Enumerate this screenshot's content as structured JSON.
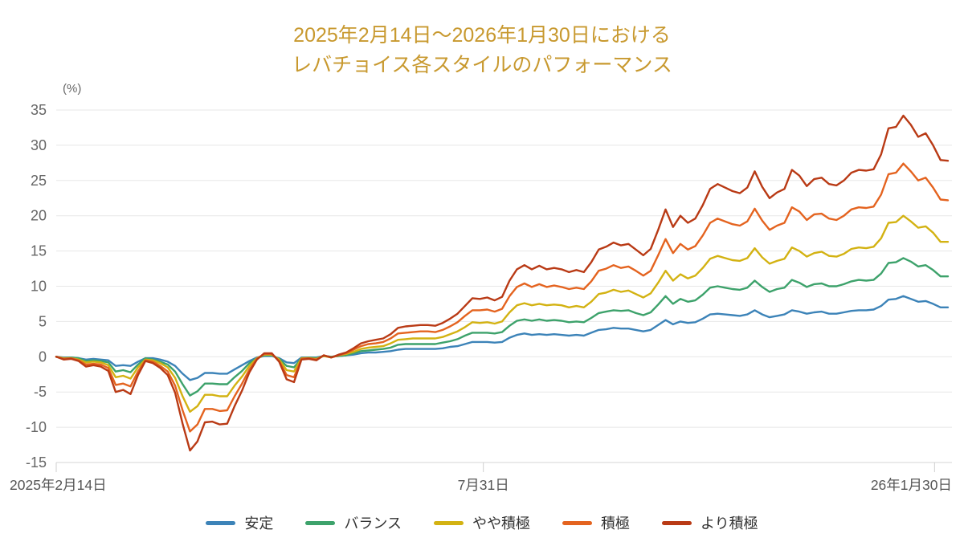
{
  "title": {
    "line1": "2025年2月14日〜2026年1月30日における",
    "line2": "レバチョイス各スタイルのパフォーマンス",
    "color": "#c8992f"
  },
  "chart_data": {
    "type": "line",
    "title": "2025年2月14日〜2026年1月30日における レバチョイス各スタイルのパフォーマンス",
    "y_unit_label": "(%)",
    "ylim": [
      -15,
      35
    ],
    "y_ticks": [
      35,
      30,
      25,
      20,
      15,
      10,
      5,
      0,
      -5,
      -10,
      -15
    ],
    "x_ticks": [
      {
        "label": "2025年2月14日",
        "pos": 0.0,
        "align": "left"
      },
      {
        "label": "7月31日",
        "pos": 0.479,
        "align": "center"
      },
      {
        "label": "26年1月30日",
        "pos": 0.985,
        "align": "right"
      }
    ],
    "grid": true,
    "legend_position": "bottom",
    "grid_color": "#e7e7e7",
    "axis_color": "#d6d6d6",
    "tick_color": "#cfcfcf",
    "y_label_color": "#666666",
    "x_label_color": "#555555",
    "series": [
      {
        "name": "安定",
        "color": "#3c83b8",
        "values": [
          0.0,
          -0.1,
          -0.1,
          -0.2,
          -0.4,
          -0.3,
          -0.4,
          -0.5,
          -1.3,
          -1.2,
          -1.3,
          -0.7,
          -0.2,
          -0.2,
          -0.4,
          -0.7,
          -1.3,
          -2.4,
          -3.3,
          -3.0,
          -2.3,
          -2.3,
          -2.4,
          -2.4,
          -1.8,
          -1.2,
          -0.6,
          -0.1,
          0.1,
          0.1,
          -0.2,
          -0.8,
          -0.9,
          -0.1,
          -0.1,
          -0.1,
          0.1,
          0.0,
          0.1,
          0.2,
          0.3,
          0.5,
          0.6,
          0.6,
          0.7,
          0.8,
          1.0,
          1.1,
          1.1,
          1.1,
          1.1,
          1.1,
          1.2,
          1.4,
          1.5,
          1.8,
          2.1,
          2.1,
          2.1,
          2.0,
          2.1,
          2.7,
          3.1,
          3.3,
          3.1,
          3.2,
          3.1,
          3.2,
          3.1,
          3.0,
          3.1,
          3.0,
          3.4,
          3.8,
          3.9,
          4.1,
          4.0,
          4.0,
          3.8,
          3.6,
          3.8,
          4.5,
          5.2,
          4.6,
          5.0,
          4.8,
          4.9,
          5.4,
          6.0,
          6.1,
          6.0,
          5.9,
          5.8,
          6.0,
          6.6,
          6.0,
          5.6,
          5.8,
          6.0,
          6.6,
          6.4,
          6.1,
          6.3,
          6.4,
          6.1,
          6.1,
          6.3,
          6.5,
          6.6,
          6.6,
          6.7,
          7.2,
          8.1,
          8.2,
          8.6,
          8.2,
          7.8,
          7.9,
          7.5,
          7.0,
          7.0
        ]
      },
      {
        "name": "バランス",
        "color": "#3da26b",
        "values": [
          0.0,
          -0.2,
          -0.1,
          -0.2,
          -0.6,
          -0.5,
          -0.6,
          -0.8,
          -2.1,
          -1.9,
          -2.2,
          -1.1,
          -0.2,
          -0.4,
          -0.7,
          -1.1,
          -2.1,
          -3.9,
          -5.5,
          -4.9,
          -3.8,
          -3.8,
          -3.9,
          -3.9,
          -2.9,
          -2.0,
          -0.9,
          -0.2,
          0.2,
          0.2,
          -0.3,
          -1.3,
          -1.5,
          -0.2,
          -0.1,
          -0.2,
          0.1,
          0.0,
          0.1,
          0.2,
          0.5,
          0.8,
          0.9,
          1.0,
          1.1,
          1.3,
          1.7,
          1.8,
          1.8,
          1.8,
          1.8,
          1.8,
          2.0,
          2.2,
          2.5,
          3.0,
          3.4,
          3.4,
          3.4,
          3.3,
          3.5,
          4.4,
          5.1,
          5.3,
          5.1,
          5.3,
          5.1,
          5.2,
          5.1,
          4.9,
          5.0,
          4.9,
          5.5,
          6.2,
          6.4,
          6.6,
          6.5,
          6.6,
          6.2,
          5.9,
          6.3,
          7.4,
          8.6,
          7.5,
          8.2,
          7.8,
          8.0,
          8.8,
          9.8,
          10.0,
          9.8,
          9.6,
          9.5,
          9.8,
          10.8,
          9.9,
          9.2,
          9.6,
          9.8,
          10.9,
          10.5,
          9.9,
          10.3,
          10.4,
          10.0,
          10.0,
          10.3,
          10.7,
          10.9,
          10.8,
          10.9,
          11.8,
          13.3,
          13.4,
          14.0,
          13.5,
          12.8,
          13.0,
          12.3,
          11.4,
          11.4
        ]
      },
      {
        "name": "やや積極",
        "color": "#d3b212",
        "values": [
          0.0,
          -0.2,
          -0.2,
          -0.4,
          -0.8,
          -0.7,
          -0.8,
          -1.2,
          -2.9,
          -2.7,
          -3.1,
          -1.5,
          -0.4,
          -0.5,
          -0.9,
          -1.5,
          -3.0,
          -5.6,
          -7.8,
          -7.0,
          -5.4,
          -5.4,
          -5.6,
          -5.6,
          -4.1,
          -2.8,
          -1.3,
          -0.2,
          0.3,
          0.3,
          -0.4,
          -1.9,
          -2.1,
          -0.2,
          -0.2,
          -0.3,
          0.1,
          -0.1,
          0.2,
          0.4,
          0.7,
          1.1,
          1.3,
          1.4,
          1.5,
          1.9,
          2.4,
          2.5,
          2.6,
          2.6,
          2.6,
          2.6,
          2.8,
          3.2,
          3.6,
          4.2,
          4.9,
          4.8,
          4.9,
          4.7,
          5.0,
          6.3,
          7.3,
          7.6,
          7.3,
          7.5,
          7.3,
          7.4,
          7.3,
          7.0,
          7.2,
          7.0,
          7.8,
          8.9,
          9.1,
          9.5,
          9.2,
          9.4,
          8.9,
          8.4,
          9.0,
          10.5,
          12.2,
          10.8,
          11.7,
          11.1,
          11.5,
          12.6,
          13.9,
          14.3,
          14.0,
          13.7,
          13.6,
          14.0,
          15.4,
          14.1,
          13.2,
          13.6,
          13.9,
          15.5,
          15.0,
          14.2,
          14.7,
          14.9,
          14.3,
          14.2,
          14.6,
          15.3,
          15.5,
          15.4,
          15.6,
          16.8,
          19.0,
          19.1,
          20.0,
          19.2,
          18.3,
          18.5,
          17.6,
          16.3,
          16.3
        ]
      },
      {
        "name": "積極",
        "color": "#e4631f",
        "values": [
          0.0,
          -0.3,
          -0.2,
          -0.5,
          -1.1,
          -1.0,
          -1.1,
          -1.6,
          -4.0,
          -3.8,
          -4.2,
          -2.1,
          -0.5,
          -0.7,
          -1.3,
          -2.1,
          -4.1,
          -7.6,
          -10.6,
          -9.6,
          -7.4,
          -7.4,
          -7.7,
          -7.6,
          -5.6,
          -3.8,
          -1.8,
          -0.3,
          0.4,
          0.4,
          -0.6,
          -2.6,
          -2.9,
          -0.3,
          -0.2,
          -0.4,
          0.2,
          -0.1,
          0.2,
          0.5,
          1.0,
          1.5,
          1.8,
          1.9,
          2.1,
          2.6,
          3.3,
          3.4,
          3.5,
          3.6,
          3.6,
          3.5,
          3.8,
          4.3,
          4.9,
          5.8,
          6.6,
          6.6,
          6.7,
          6.4,
          6.8,
          8.6,
          9.9,
          10.4,
          9.9,
          10.3,
          9.9,
          10.1,
          9.9,
          9.6,
          9.8,
          9.6,
          10.7,
          12.2,
          12.5,
          13.0,
          12.6,
          12.8,
          12.2,
          11.5,
          12.2,
          14.4,
          16.7,
          14.7,
          16.0,
          15.2,
          15.7,
          17.2,
          19.0,
          19.6,
          19.2,
          18.8,
          18.6,
          19.2,
          21.0,
          19.3,
          18.0,
          18.6,
          19.0,
          21.2,
          20.6,
          19.4,
          20.2,
          20.3,
          19.6,
          19.4,
          20.0,
          20.9,
          21.2,
          21.1,
          21.3,
          23.0,
          25.9,
          26.1,
          27.4,
          26.3,
          25.0,
          25.4,
          24.0,
          22.3,
          22.2
        ]
      },
      {
        "name": "より積極",
        "color": "#b93a15",
        "values": [
          0.0,
          -0.4,
          -0.3,
          -0.6,
          -1.4,
          -1.2,
          -1.4,
          -2.0,
          -5.0,
          -4.7,
          -5.3,
          -2.6,
          -0.6,
          -0.9,
          -1.6,
          -2.6,
          -5.1,
          -9.5,
          -13.3,
          -12.0,
          -9.3,
          -9.2,
          -9.6,
          -9.5,
          -7.0,
          -4.8,
          -2.2,
          -0.4,
          0.5,
          0.5,
          -0.7,
          -3.2,
          -3.6,
          -0.4,
          -0.3,
          -0.5,
          0.2,
          -0.1,
          0.3,
          0.6,
          1.2,
          1.9,
          2.2,
          2.4,
          2.6,
          3.2,
          4.1,
          4.3,
          4.4,
          4.5,
          4.5,
          4.4,
          4.8,
          5.4,
          6.1,
          7.2,
          8.3,
          8.2,
          8.4,
          8.0,
          8.5,
          10.8,
          12.4,
          13.0,
          12.4,
          12.9,
          12.4,
          12.6,
          12.4,
          12.0,
          12.3,
          12.0,
          13.4,
          15.2,
          15.6,
          16.2,
          15.8,
          16.0,
          15.2,
          14.4,
          15.3,
          18.0,
          20.9,
          18.4,
          20.0,
          19.0,
          19.6,
          21.5,
          23.8,
          24.5,
          24.0,
          23.5,
          23.2,
          24.0,
          26.3,
          24.1,
          22.5,
          23.3,
          23.8,
          26.5,
          25.7,
          24.2,
          25.2,
          25.4,
          24.5,
          24.3,
          25.0,
          26.1,
          26.5,
          26.4,
          26.6,
          28.7,
          32.4,
          32.6,
          34.2,
          32.9,
          31.2,
          31.7,
          30.0,
          27.9,
          27.8
        ]
      }
    ]
  },
  "legend": {
    "items": [
      "安定",
      "バランス",
      "やや積極",
      "積極",
      "より積極"
    ]
  }
}
